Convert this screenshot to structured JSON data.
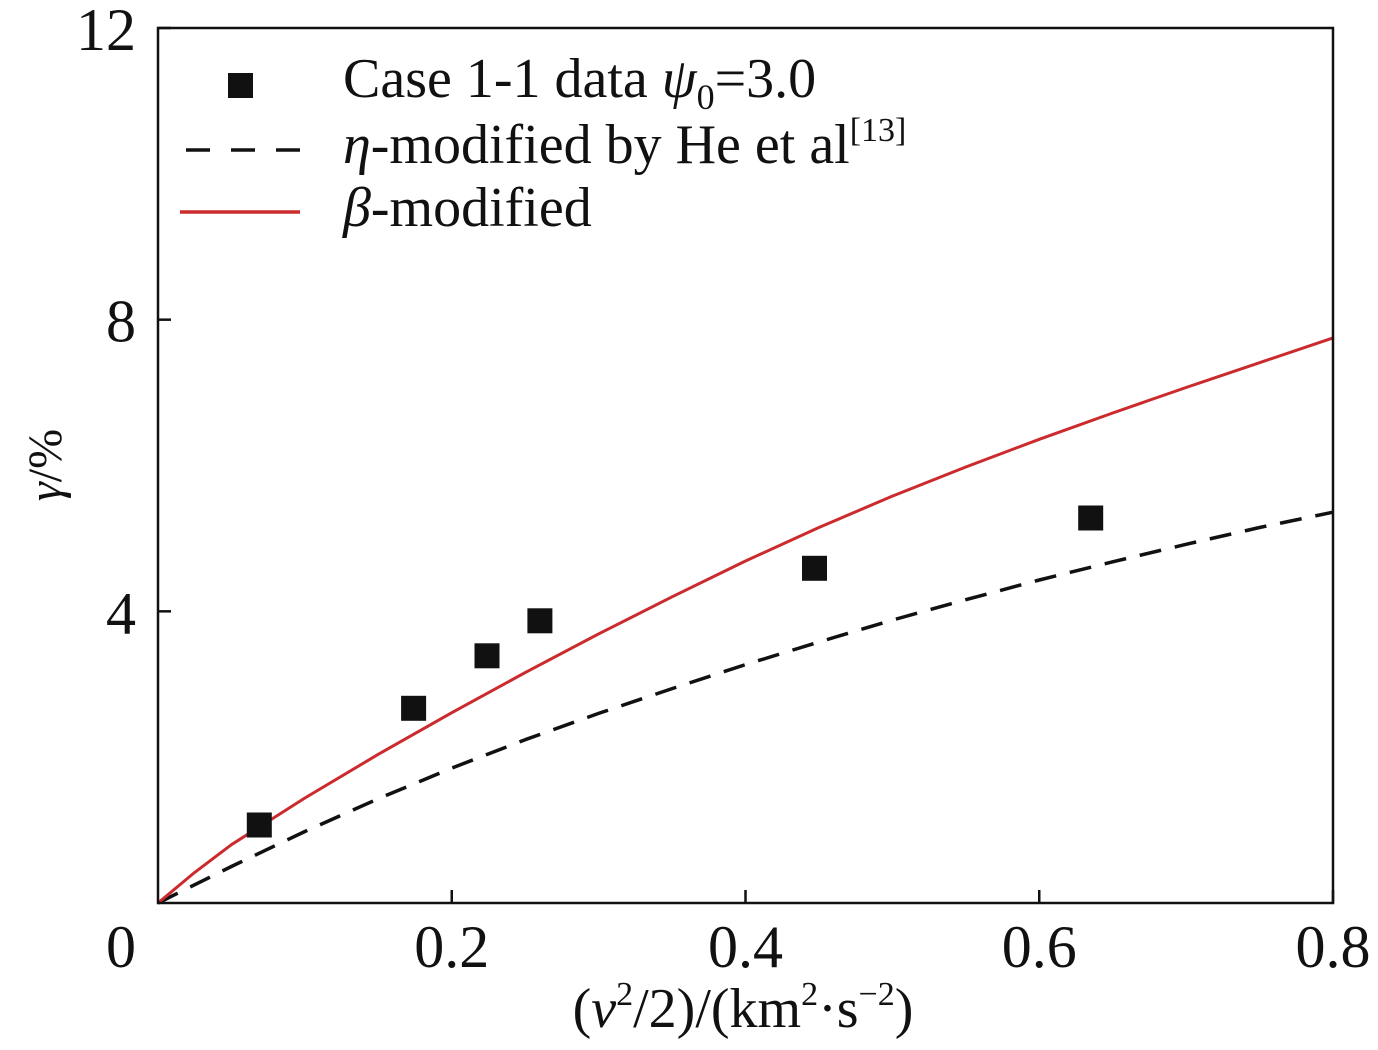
{
  "chart_data": {
    "type": "scatter",
    "xlabel": {
      "open": "(",
      "var": "v",
      "var_sup": "2",
      "middle": "/2)/(km",
      "unit_sup": "2",
      "dot_unit": "·s",
      "unit_sup2": "−2",
      "close": ")"
    },
    "ylabel": {
      "var": "γ",
      "rest": "/%"
    },
    "xlim": [
      0,
      0.8
    ],
    "ylim": [
      0,
      12
    ],
    "origin_label": "0",
    "x_ticks": [
      {
        "value": 0.2,
        "label": "0.2"
      },
      {
        "value": 0.4,
        "label": "0.4"
      },
      {
        "value": 0.6,
        "label": "0.6"
      },
      {
        "value": 0.8,
        "label": "0.8"
      }
    ],
    "y_ticks": [
      {
        "value": 4,
        "label": "4"
      },
      {
        "value": 8,
        "label": "8"
      },
      {
        "value": 12,
        "label": "12"
      }
    ],
    "grid": false,
    "legend_position": "top-left",
    "series": [
      {
        "type": "scatter",
        "marker": "square",
        "color": "#111111",
        "name": {
          "text": "Case 1-1 data",
          "symbol": "ψ",
          "subscript": "0",
          "suffix": "=3.0"
        },
        "x": [
          0.069,
          0.174,
          0.224,
          0.26,
          0.447,
          0.635
        ],
        "y": [
          1.07,
          2.67,
          3.39,
          3.87,
          4.59,
          5.28
        ]
      },
      {
        "type": "line",
        "line_style": "dashed",
        "color": "#111111",
        "name": {
          "symbol": "η",
          "text": "-modified by He et al",
          "superscript": "[13]"
        },
        "x": [
          0,
          0.05,
          0.1,
          0.15,
          0.2,
          0.25,
          0.3,
          0.35,
          0.4,
          0.45,
          0.5,
          0.55,
          0.6,
          0.65,
          0.7,
          0.75,
          0.8
        ],
        "y": [
          0,
          0.5,
          0.98,
          1.43,
          1.85,
          2.24,
          2.6,
          2.94,
          3.27,
          3.58,
          3.88,
          4.16,
          4.43,
          4.68,
          4.92,
          5.15,
          5.36
        ]
      },
      {
        "type": "line",
        "line_style": "solid",
        "color": "#cc2b2e",
        "name": {
          "symbol": "β",
          "text": "-modified"
        },
        "x": [
          0,
          0.025,
          0.05,
          0.1,
          0.15,
          0.2,
          0.25,
          0.3,
          0.35,
          0.4,
          0.45,
          0.5,
          0.55,
          0.6,
          0.65,
          0.7,
          0.75,
          0.8
        ],
        "y": [
          0,
          0.42,
          0.8,
          1.44,
          2.04,
          2.61,
          3.16,
          3.69,
          4.2,
          4.69,
          5.15,
          5.58,
          5.98,
          6.36,
          6.72,
          7.07,
          7.41,
          7.75
        ]
      }
    ]
  }
}
